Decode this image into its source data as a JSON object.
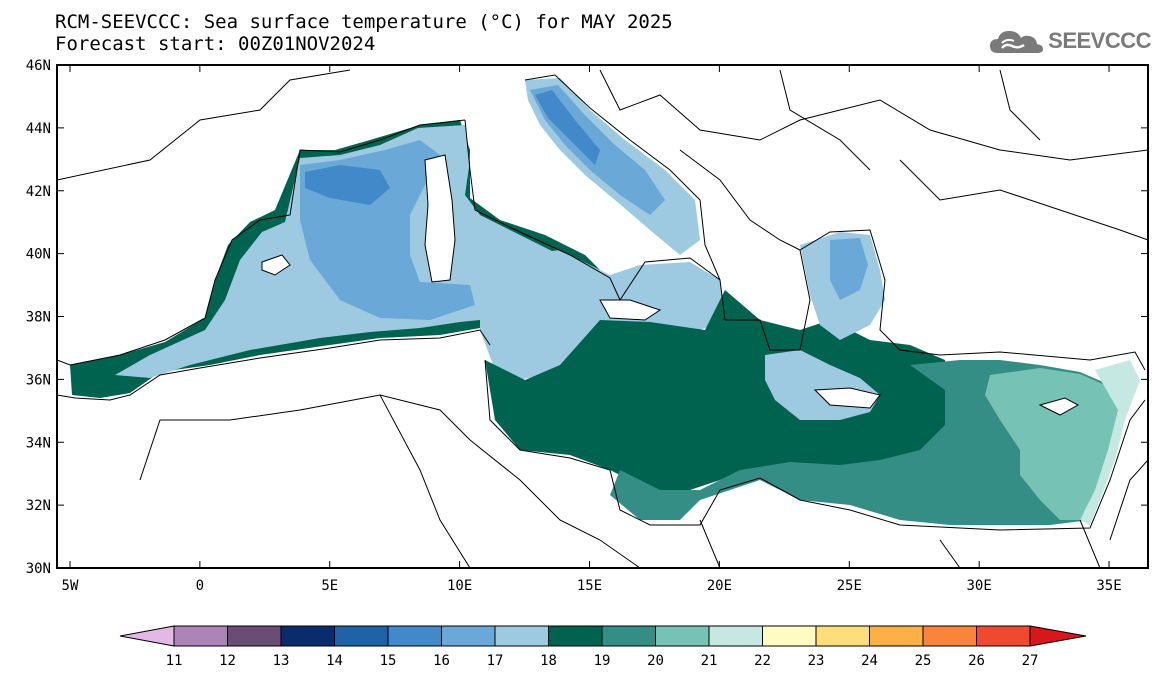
{
  "title_line1": "RCM-SEEVCCC: Sea surface temperature (°C) for MAY 2025",
  "title_line2": "Forecast start: 00Z01NOV2024",
  "logo": {
    "text": "SEEVCCC",
    "icon": "cloud-icon",
    "color": "#7a7a7a"
  },
  "map": {
    "lon_ticks": [
      "5W",
      "0",
      "5E",
      "10E",
      "15E",
      "20E",
      "25E",
      "30E",
      "35E"
    ],
    "lat_ticks": [
      "46N",
      "44N",
      "42N",
      "40N",
      "38N",
      "36N",
      "34N",
      "32N",
      "30N"
    ],
    "lon_range": [
      -5.5,
      36.5
    ],
    "lat_range": [
      30,
      46
    ],
    "land_color": "#ffffff"
  },
  "colorbar": {
    "labels": [
      "11",
      "12",
      "13",
      "14",
      "15",
      "16",
      "17",
      "18",
      "19",
      "20",
      "21",
      "22",
      "23",
      "24",
      "25",
      "26",
      "27"
    ],
    "colors": [
      "#e2b8e4",
      "#ac84b8",
      "#6a4c74",
      "#0b2c6c",
      "#1f63a6",
      "#4189c9",
      "#6aa8d7",
      "#9ecae1",
      "#00634f",
      "#348e86",
      "#76c2b4",
      "#c5e8e2",
      "#fffcc2",
      "#fedd7b",
      "#fdb046",
      "#f9853d",
      "#ef4a2f",
      "#d9161a"
    ]
  }
}
